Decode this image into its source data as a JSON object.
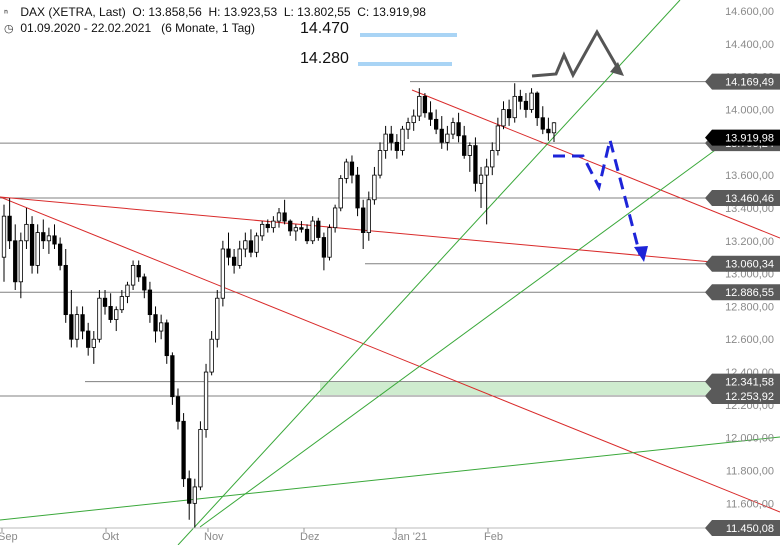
{
  "header": {
    "instrument": "DAX (XETRA, Last)",
    "open": "O: 13.858,56",
    "high": "H: 13.923,53",
    "low": "L: 13.802,55",
    "close": "C: 13.919,98",
    "range": "01.09.2020 - 22.02.2021",
    "period": "(6 Monate, 1 Tag)",
    "chart_icon": "candlestick-icon",
    "clock_icon": "clock-icon"
  },
  "levels_text": {
    "level1": "14.470",
    "level2": "14.280"
  },
  "colors": {
    "up": "#ffffff",
    "down": "#000000",
    "support_line": "#808080",
    "red_trend": "#d92b2b",
    "green_trend": "#3aa83a",
    "zone": "#cfeccf",
    "blue_levels": "#a9d4f5",
    "forecast_blue": "#1d24d8",
    "forecast_gray": "#555555",
    "label_bg": "#5a5a5a",
    "label_last": "#000000"
  },
  "chart_data": {
    "type": "candlestick",
    "title": "DAX (XETRA, Last)",
    "x_range": [
      "01.09.2020",
      "22.02.2021"
    ],
    "x_ticks": [
      "Sep",
      "Okt",
      "Nov",
      "Dez",
      "Jan '21",
      "Feb"
    ],
    "y_ticks": [
      "14.600,00",
      "14.400,00",
      "14.200,00",
      "14.000,00",
      "13.800,00",
      "13.600,00",
      "13.400,00",
      "13.200,00",
      "13.000,00",
      "12.800,00",
      "12.600,00",
      "12.400,00",
      "12.200,00",
      "12.000,00",
      "11.800,00",
      "11.600,00"
    ],
    "ylim": [
      11400,
      14700
    ],
    "last_price": "13.919,98",
    "price_labels": [
      "14.169,49",
      "13.795,24",
      "13.460,46",
      "13.060,34",
      "12.886,55",
      "12.341,58",
      "12.253,92",
      "11.450,08"
    ],
    "levels": [
      14169.49,
      13795.24,
      13460.46,
      13060.34,
      12886.55,
      12341.58,
      12253.92,
      11450.08
    ],
    "candles": [
      [
        13100,
        13420,
        12950,
        13350
      ],
      [
        13350,
        13460,
        13150,
        13200
      ],
      [
        13200,
        13300,
        12900,
        12950
      ],
      [
        12950,
        13250,
        12850,
        13200
      ],
      [
        13200,
        13400,
        13150,
        13300
      ],
      [
        13300,
        13350,
        13000,
        13050
      ],
      [
        13050,
        13300,
        13000,
        13250
      ],
      [
        13250,
        13330,
        13150,
        13200
      ],
      [
        13200,
        13280,
        13120,
        13230
      ],
      [
        13230,
        13300,
        13150,
        13180
      ],
      [
        13180,
        13220,
        13020,
        13050
      ],
      [
        13050,
        13150,
        12700,
        12750
      ],
      [
        12750,
        12900,
        12550,
        12600
      ],
      [
        12600,
        12800,
        12550,
        12750
      ],
      [
        12750,
        12800,
        12600,
        12650
      ],
      [
        12650,
        12700,
        12500,
        12550
      ],
      [
        12550,
        12650,
        12450,
        12600
      ],
      [
        12600,
        12900,
        12580,
        12850
      ],
      [
        12850,
        12900,
        12750,
        12800
      ],
      [
        12800,
        12880,
        12700,
        12720
      ],
      [
        12720,
        12800,
        12650,
        12780
      ],
      [
        12780,
        12900,
        12760,
        12860
      ],
      [
        12860,
        12950,
        12820,
        12930
      ],
      [
        12930,
        13080,
        12900,
        13050
      ],
      [
        13050,
        13080,
        12950,
        12980
      ],
      [
        12980,
        13000,
        12850,
        12900
      ],
      [
        12900,
        12950,
        12700,
        12750
      ],
      [
        12750,
        12800,
        12580,
        12650
      ],
      [
        12650,
        12750,
        12600,
        12700
      ],
      [
        12700,
        12720,
        12450,
        12500
      ],
      [
        12500,
        12520,
        12200,
        12250
      ],
      [
        12250,
        12300,
        12050,
        12100
      ],
      [
        12100,
        12150,
        11700,
        11750
      ],
      [
        11750,
        11800,
        11500,
        11600
      ],
      [
        11600,
        11750,
        11450,
        11700
      ],
      [
        11700,
        12100,
        11680,
        12050
      ],
      [
        12050,
        12450,
        12000,
        12400
      ],
      [
        12400,
        12650,
        12380,
        12600
      ],
      [
        12600,
        12900,
        12550,
        12850
      ],
      [
        12850,
        13200,
        12800,
        13150
      ],
      [
        13150,
        13250,
        13050,
        13100
      ],
      [
        13100,
        13150,
        13000,
        13050
      ],
      [
        13050,
        13200,
        13030,
        13150
      ],
      [
        13150,
        13250,
        13100,
        13200
      ],
      [
        13200,
        13270,
        13100,
        13130
      ],
      [
        13130,
        13250,
        13100,
        13230
      ],
      [
        13230,
        13320,
        13200,
        13300
      ],
      [
        13300,
        13330,
        13250,
        13280
      ],
      [
        13280,
        13350,
        13250,
        13320
      ],
      [
        13320,
        13400,
        13280,
        13370
      ],
      [
        13370,
        13450,
        13300,
        13320
      ],
      [
        13320,
        13330,
        13230,
        13260
      ],
      [
        13260,
        13300,
        13200,
        13280
      ],
      [
        13280,
        13320,
        13250,
        13270
      ],
      [
        13270,
        13300,
        13180,
        13200
      ],
      [
        13200,
        13350,
        13180,
        13320
      ],
      [
        13320,
        13340,
        13200,
        13220
      ],
      [
        13220,
        13250,
        13020,
        13100
      ],
      [
        13100,
        13300,
        13080,
        13280
      ],
      [
        13280,
        13420,
        13250,
        13400
      ],
      [
        13400,
        13600,
        13380,
        13580
      ],
      [
        13580,
        13700,
        13550,
        13680
      ],
      [
        13680,
        13720,
        13550,
        13600
      ],
      [
        13600,
        13650,
        13350,
        13400
      ],
      [
        13400,
        13450,
        13150,
        13250
      ],
      [
        13250,
        13500,
        13200,
        13450
      ],
      [
        13450,
        13650,
        13420,
        13600
      ],
      [
        13600,
        13800,
        13580,
        13750
      ],
      [
        13750,
        13900,
        13700,
        13850
      ],
      [
        13850,
        13900,
        13750,
        13800
      ],
      [
        13800,
        13850,
        13700,
        13750
      ],
      [
        13750,
        13900,
        13720,
        13880
      ],
      [
        13880,
        13950,
        13820,
        13920
      ],
      [
        13920,
        14000,
        13870,
        13960
      ],
      [
        13960,
        14130,
        13930,
        14080
      ],
      [
        14080,
        14100,
        13950,
        13980
      ],
      [
        13980,
        14050,
        13900,
        13940
      ],
      [
        13940,
        14000,
        13850,
        13880
      ],
      [
        13880,
        13960,
        13760,
        13800
      ],
      [
        13800,
        13900,
        13750,
        13850
      ],
      [
        13850,
        13950,
        13820,
        13920
      ],
      [
        13920,
        13980,
        13800,
        13840
      ],
      [
        13840,
        13900,
        13700,
        13720
      ],
      [
        13720,
        13800,
        13620,
        13780
      ],
      [
        13780,
        13830,
        13500,
        13550
      ],
      [
        13550,
        13650,
        13400,
        13600
      ],
      [
        13600,
        13700,
        13300,
        13650
      ],
      [
        13650,
        13800,
        13600,
        13750
      ],
      [
        13750,
        13950,
        13720,
        13900
      ],
      [
        13900,
        14050,
        13880,
        14000
      ],
      [
        14000,
        14060,
        13900,
        13950
      ],
      [
        13950,
        14160,
        13920,
        14080
      ],
      [
        14080,
        14120,
        14000,
        14050
      ],
      [
        14050,
        14100,
        13950,
        14000
      ],
      [
        14000,
        14130,
        13980,
        14100
      ],
      [
        14100,
        14110,
        13900,
        13950
      ],
      [
        13950,
        14020,
        13850,
        13880
      ],
      [
        13880,
        13950,
        13810,
        13858
      ],
      [
        13858,
        13923,
        13802,
        13919
      ]
    ]
  }
}
